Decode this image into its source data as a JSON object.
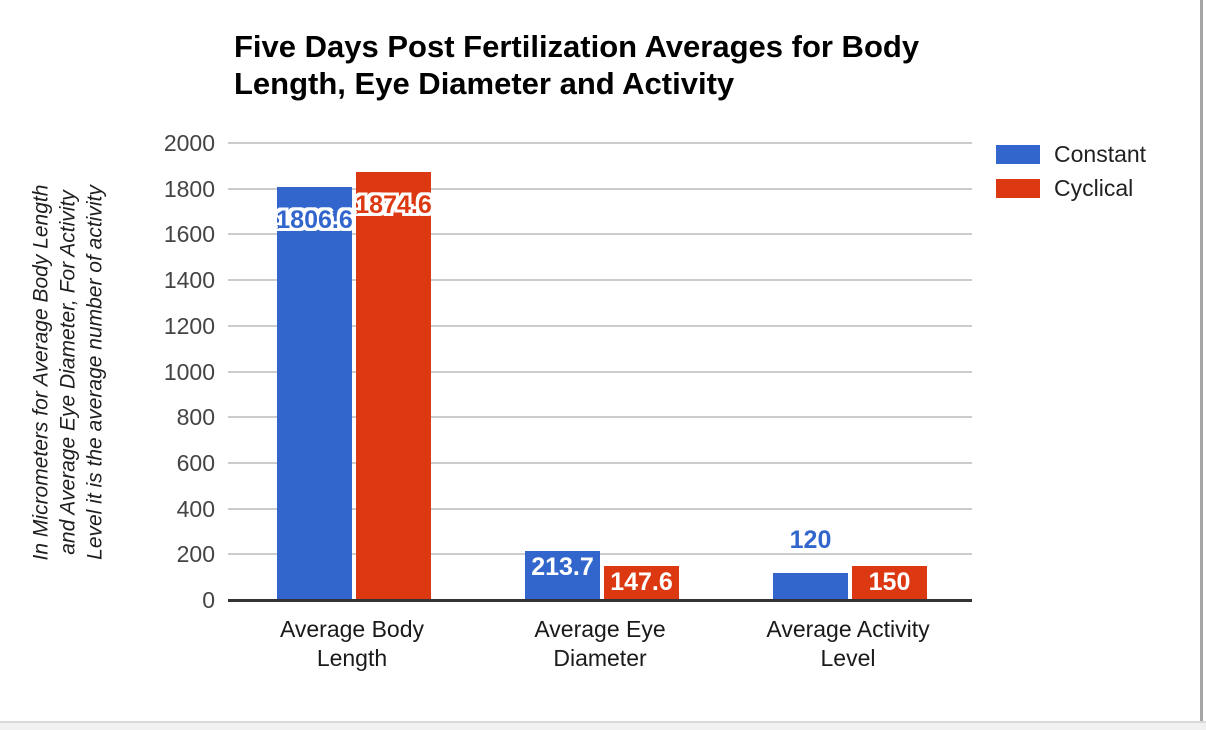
{
  "frame": {
    "right_border": "#a6a6a6",
    "bottom_border": "#d9d9d9",
    "bottom_strip": "#f1f1f1",
    "card_background": "#ffffff"
  },
  "chart_data": {
    "type": "bar",
    "title": "Five Days Post Fertilization Averages for Body Length, Eye Diameter and Activity",
    "title_lines": [
      "Five Days Post Fertilization Averages for Body",
      "Length, Eye Diameter and Activity"
    ],
    "ylabel": "In Micrometers for Average Body Length and Average Eye Diameter, For Activity Level it is the average number of activity",
    "ylabel_lines": [
      "In Micrometers for Average Body Length",
      "and Average Eye Diameter, For Activity",
      "Level it is the average number of activity"
    ],
    "xlabel": "",
    "categories": [
      "Average Body Length",
      "Average Eye Diameter",
      "Average Activity Level"
    ],
    "category_lines": [
      [
        "Average Body",
        "Length"
      ],
      [
        "Average Eye",
        "Diameter"
      ],
      [
        "Average Activity",
        "Level"
      ]
    ],
    "series": [
      {
        "name": "Constant",
        "color": "#3366cc",
        "values": [
          1806.6,
          213.7,
          120
        ],
        "value_labels": [
          "1806.6",
          "213.7",
          "120"
        ]
      },
      {
        "name": "Cyclical",
        "color": "#dc3912",
        "values": [
          1874.6,
          147.6,
          150
        ],
        "value_labels": [
          "1874.6",
          "147.6",
          "150"
        ]
      }
    ],
    "ylim": [
      0,
      2000
    ],
    "y_ticks": [
      0,
      200,
      400,
      600,
      800,
      1000,
      1200,
      1400,
      1600,
      1800,
      2000
    ],
    "grid": true,
    "legend_position": "right",
    "colors": {
      "gridline": "#cccccc",
      "baseline": "#333333",
      "tick_text": "#444444",
      "category_text": "#1a1a1a",
      "title_text": "#000000",
      "ylabel_text": "#1f1f1f",
      "legend_text": "#212121",
      "value_label_inside": "#ffffff"
    }
  }
}
